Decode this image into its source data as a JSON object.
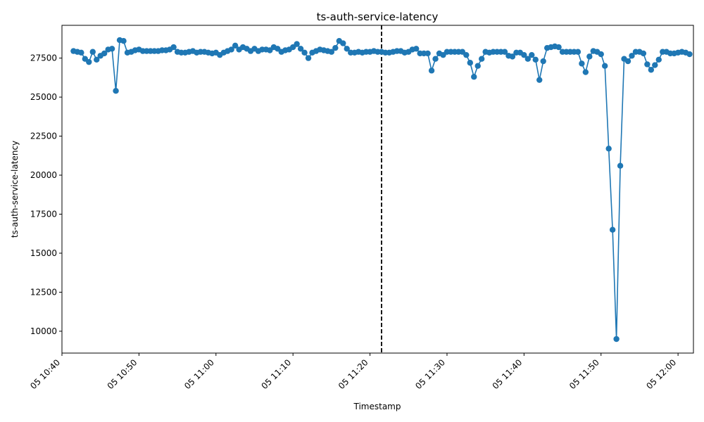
{
  "chart_data": {
    "type": "line",
    "title": "ts-auth-service-latency",
    "xlabel": "Timestamp",
    "ylabel": "ts-auth-service-latency",
    "x_start": "2024-01-05 10:41:30",
    "x_step_seconds": 30,
    "xlim": [
      "2024-01-05 10:40:00",
      "2024-01-05 12:02:00"
    ],
    "ylim": [
      8600,
      29600
    ],
    "x_ticks": [
      {
        "t": "2024-01-05 10:40",
        "label": "05 10:40"
      },
      {
        "t": "2024-01-05 10:50",
        "label": "05 10:50"
      },
      {
        "t": "2024-01-05 11:00",
        "label": "05 11:00"
      },
      {
        "t": "2024-01-05 11:10",
        "label": "05 11:10"
      },
      {
        "t": "2024-01-05 11:20",
        "label": "05 11:20"
      },
      {
        "t": "2024-01-05 11:30",
        "label": "05 11:30"
      },
      {
        "t": "2024-01-05 11:40",
        "label": "05 11:40"
      },
      {
        "t": "2024-01-05 11:50",
        "label": "05 11:50"
      },
      {
        "t": "2024-01-05 12:00",
        "label": "05 12:00"
      }
    ],
    "y_ticks": [
      10000,
      12500,
      15000,
      17500,
      20000,
      22500,
      25000,
      27500
    ],
    "vline": "2024-01-05 11:21:30",
    "color": "#1f77b4",
    "values": [
      27950,
      27900,
      27850,
      27450,
      27250,
      27900,
      27400,
      27650,
      27800,
      28050,
      28100,
      25400,
      28650,
      28600,
      27850,
      27900,
      28000,
      28050,
      27950,
      27950,
      27950,
      27950,
      27950,
      28000,
      28000,
      28050,
      28200,
      27900,
      27850,
      27850,
      27900,
      27950,
      27850,
      27900,
      27900,
      27850,
      27800,
      27850,
      27700,
      27850,
      27950,
      28050,
      28300,
      28050,
      28200,
      28100,
      27950,
      28100,
      27950,
      28050,
      28050,
      28000,
      28200,
      28100,
      27900,
      28000,
      28050,
      28200,
      28400,
      28100,
      27850,
      27500,
      27850,
      27950,
      28050,
      28000,
      27950,
      27900,
      28150,
      28600,
      28450,
      28100,
      27850,
      27850,
      27900,
      27850,
      27900,
      27900,
      27950,
      27900,
      27900,
      27850,
      27850,
      27900,
      27950,
      27950,
      27850,
      27900,
      28050,
      28100,
      27800,
      27800,
      27800,
      26700,
      27450,
      27800,
      27700,
      27900,
      27900,
      27900,
      27900,
      27900,
      27700,
      27200,
      26300,
      27000,
      27450,
      27900,
      27850,
      27900,
      27900,
      27900,
      27900,
      27650,
      27600,
      27850,
      27850,
      27700,
      27450,
      27700,
      27400,
      26100,
      27300,
      28150,
      28200,
      28250,
      28200,
      27900,
      27900,
      27900,
      27900,
      27900,
      27150,
      26600,
      27600,
      27950,
      27900,
      27750,
      27000,
      21700,
      16500,
      9500,
      20600,
      27450,
      27300,
      27650,
      27900,
      27900,
      27800,
      27100,
      26750,
      27050,
      27400,
      27900,
      27900,
      27800,
      27800,
      27850,
      27900,
      27850,
      27750
    ]
  }
}
